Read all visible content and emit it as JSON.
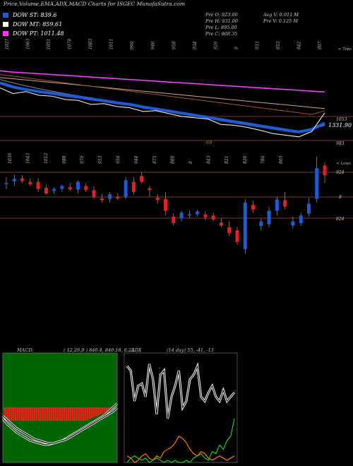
{
  "header": {
    "title": "Price,Volume,EMA,ADX,MACD Charts for I",
    "site": "SGEC MunafaSutra.com"
  },
  "legend": [
    {
      "label": "DOW ST: 839.6",
      "color": "#1e5bd8"
    },
    {
      "label": "DOW MT: 859.61",
      "color": "#ffffff"
    },
    {
      "label": "DOW PT: 1011.48",
      "color": "#ff33ff"
    }
  ],
  "info": {
    "prev_open": "Pre O: 923.00",
    "prev_high": "Pre H: 931.00",
    "prev_low": "Pre L: 895.00",
    "prev_close": "Pre C: 908.35",
    "avg_volume": "Avg V: 0.011 M",
    "prev_volume": "Pre V: 0.125 M"
  },
  "chart_data": [
    {
      "type": "line",
      "name": "price-ema-panel",
      "top_tick_labels": [
        "1027",
        "1063",
        "1051",
        "1070",
        "1063",
        "1011",
        "990",
        "946",
        "958",
        "934",
        "926",
        "9",
        "933",
        "853",
        "842",
        "907"
      ],
      "top_tick_caption": "< Tops",
      "right_labels": [
        "1053",
        "1331.90",
        "983"
      ],
      "low_label": "69",
      "series": [
        {
          "color": "#ff44ff",
          "values": [
            1091,
            1088,
            1086,
            1084,
            1082,
            1080,
            1078,
            1076,
            1074,
            1072,
            1070,
            1068,
            1066,
            1064,
            1062,
            1060,
            1058,
            1056,
            1054,
            1052,
            1050,
            1048,
            1046,
            1044,
            1042,
            1040
          ]
        },
        {
          "color": "#ccaa88",
          "values": [
            1075,
            1072,
            1069,
            1066,
            1063,
            1060,
            1057,
            1054,
            1051,
            1048,
            1045,
            1042,
            1039,
            1036,
            1033,
            1030,
            1027,
            1024,
            1021,
            1018,
            1015,
            1012,
            1009,
            1006,
            1003,
            1000
          ]
        },
        {
          "color": "#aa5522",
          "values": [
            1082,
            1078,
            1074,
            1070,
            1066,
            1062,
            1058,
            1054,
            1050,
            1046,
            1042,
            1038,
            1034,
            1030,
            1026,
            1022,
            1018,
            1014,
            1010,
            1006,
            1002,
            998,
            994,
            990,
            986,
            995
          ]
        },
        {
          "color": "#888888",
          "values": [
            1070,
            1062,
            1055,
            1048,
            1042,
            1036,
            1031,
            1026,
            1021,
            1016,
            1011,
            1006,
            1001,
            996,
            991,
            986,
            981,
            976,
            971,
            966,
            961,
            956,
            951,
            946,
            950,
            960
          ]
        },
        {
          "color": "#1e5bd8",
          "values": [
            1062,
            1052,
            1046,
            1041,
            1037,
            1032,
            1028,
            1023,
            1019,
            1014,
            1010,
            1004,
            999,
            994,
            989,
            984,
            979,
            973,
            968,
            963,
            958,
            953,
            948,
            944,
            950,
            965
          ]
        },
        {
          "color": "#ffffff",
          "values": [
            1050,
            1036,
            1041,
            1032,
            1030,
            1022,
            1020,
            1010,
            1012,
            1005,
            1002,
            993,
            995,
            988,
            981,
            978,
            975,
            962,
            960,
            955,
            948,
            940,
            936,
            932,
            945,
            990
          ]
        }
      ]
    },
    {
      "type": "candlestick",
      "name": "candle-panel",
      "top_tick_labels": [
        "1036",
        "1043",
        "1012",
        "988",
        "979",
        "953",
        "950",
        "944",
        "875",
        "880",
        "8",
        "843",
        "821",
        "826",
        "786",
        "803"
      ],
      "top_tick_caption": "< Lows",
      "right_labels": [
        "924",
        "8",
        "824"
      ],
      "candles": [
        {
          "o": 893,
          "h": 905,
          "l": 885,
          "c": 895
        },
        {
          "o": 898,
          "h": 909,
          "l": 890,
          "c": 902
        },
        {
          "o": 903,
          "h": 908,
          "l": 895,
          "c": 898
        },
        {
          "o": 897,
          "h": 903,
          "l": 890,
          "c": 893
        },
        {
          "o": 897,
          "h": 903,
          "l": 880,
          "c": 885
        },
        {
          "o": 887,
          "h": 892,
          "l": 875,
          "c": 877
        },
        {
          "o": 882,
          "h": 888,
          "l": 877,
          "c": 885
        },
        {
          "o": 885,
          "h": 892,
          "l": 880,
          "c": 890
        },
        {
          "o": 888,
          "h": 895,
          "l": 882,
          "c": 884
        },
        {
          "o": 884,
          "h": 900,
          "l": 878,
          "c": 897
        },
        {
          "o": 890,
          "h": 895,
          "l": 880,
          "c": 883
        },
        {
          "o": 883,
          "h": 890,
          "l": 868,
          "c": 872
        },
        {
          "o": 869,
          "h": 877,
          "l": 862,
          "c": 866
        },
        {
          "o": 868,
          "h": 880,
          "l": 862,
          "c": 876
        },
        {
          "o": 872,
          "h": 878,
          "l": 866,
          "c": 869
        },
        {
          "o": 872,
          "h": 905,
          "l": 868,
          "c": 900
        },
        {
          "o": 897,
          "h": 905,
          "l": 876,
          "c": 880
        },
        {
          "o": 907,
          "h": 914,
          "l": 895,
          "c": 897
        },
        {
          "o": 886,
          "h": 890,
          "l": 872,
          "c": 883
        },
        {
          "o": 870,
          "h": 876,
          "l": 860,
          "c": 866
        },
        {
          "o": 868,
          "h": 880,
          "l": 840,
          "c": 848
        },
        {
          "o": 838,
          "h": 844,
          "l": 823,
          "c": 827
        },
        {
          "o": 835,
          "h": 848,
          "l": 830,
          "c": 845
        },
        {
          "o": 840,
          "h": 848,
          "l": 836,
          "c": 842
        },
        {
          "o": 842,
          "h": 850,
          "l": 838,
          "c": 847
        },
        {
          "o": 842,
          "h": 847,
          "l": 832,
          "c": 837
        },
        {
          "o": 840,
          "h": 845,
          "l": 830,
          "c": 833
        },
        {
          "o": 828,
          "h": 835,
          "l": 820,
          "c": 823
        },
        {
          "o": 820,
          "h": 830,
          "l": 806,
          "c": 810
        },
        {
          "o": 815,
          "h": 820,
          "l": 790,
          "c": 795
        },
        {
          "o": 783,
          "h": 868,
          "l": 775,
          "c": 862
        },
        {
          "o": 858,
          "h": 865,
          "l": 845,
          "c": 850
        },
        {
          "o": 822,
          "h": 835,
          "l": 815,
          "c": 830
        },
        {
          "o": 825,
          "h": 855,
          "l": 820,
          "c": 848
        },
        {
          "o": 848,
          "h": 872,
          "l": 840,
          "c": 867
        },
        {
          "o": 866,
          "h": 880,
          "l": 850,
          "c": 855
        },
        {
          "o": 823,
          "h": 838,
          "l": 818,
          "c": 830
        },
        {
          "o": 827,
          "h": 845,
          "l": 822,
          "c": 840
        },
        {
          "o": 843,
          "h": 870,
          "l": 838,
          "c": 860
        },
        {
          "o": 868,
          "h": 940,
          "l": 862,
          "c": 920
        },
        {
          "o": 925,
          "h": 931,
          "l": 895,
          "c": 908
        }
      ]
    },
    {
      "type": "line",
      "name": "macd-panel",
      "label": "MACD:",
      "values_text": "( 12,26,9 ) 846.4, 840.18, 6.22",
      "series": [
        {
          "color": "#ffffff",
          "values": [
            -8,
            -12,
            -15,
            -18,
            -20,
            -22,
            -24,
            -25,
            -26,
            -27,
            -27,
            -26,
            -25,
            -24,
            -22,
            -20,
            -18,
            -16,
            -14,
            -12,
            -10,
            -8,
            -6,
            -3,
            0,
            3
          ]
        },
        {
          "color": "#ffffff",
          "values": [
            -6,
            -9,
            -12,
            -15,
            -17,
            -19,
            -21,
            -23,
            -24,
            -25,
            -26,
            -26,
            -25,
            -24,
            -23,
            -21,
            -19,
            -17,
            -15,
            -13,
            -11,
            -9,
            -7,
            -5,
            -3,
            0
          ]
        }
      ]
    },
    {
      "type": "line",
      "name": "adx-panel",
      "label": "ADX",
      "values_text": "(14 day) 55, -41, -13",
      "series": [
        {
          "color": "#ffffff",
          "values": [
            44,
            42,
            28,
            35,
            36,
            30,
            45,
            38,
            22,
            40,
            42,
            20,
            30,
            35,
            42,
            25,
            28,
            38,
            40,
            44,
            30,
            28,
            32,
            35,
            30,
            28,
            33,
            28,
            30,
            32
          ]
        },
        {
          "color": "#ff7a00",
          "values": [
            3,
            2,
            0,
            1,
            3,
            4,
            2,
            1,
            3,
            2,
            5,
            6,
            7,
            9,
            12,
            11,
            9,
            6,
            4,
            3,
            5,
            4,
            2,
            1,
            2,
            3,
            2,
            1,
            2,
            3
          ]
        },
        {
          "color": "#22cc22",
          "values": [
            0,
            2,
            3,
            2,
            1,
            2,
            0,
            1,
            2,
            1,
            0,
            1,
            0,
            1,
            0,
            0,
            1,
            0,
            2,
            3,
            4,
            2,
            1,
            5,
            4,
            8,
            6,
            10,
            12,
            20
          ]
        }
      ]
    }
  ]
}
